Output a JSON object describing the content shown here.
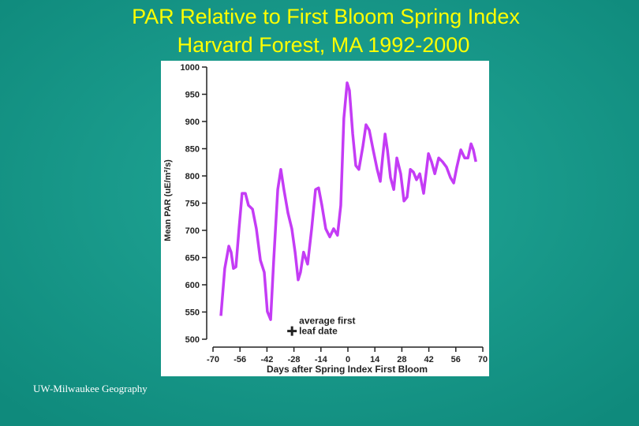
{
  "chart_data": {
    "type": "line",
    "title": "PAR Relative to First Bloom Spring Index",
    "subtitle": "Harvard Forest, MA 1992-2000",
    "x_label": "Days after Spring Index First Bloom",
    "y_label": "Mean PAR (uE/m²/s)",
    "source": "UW-Milwaukee Geography",
    "annotation": {
      "lines": [
        "average first",
        "leaf date"
      ],
      "x": -29,
      "y": 515
    },
    "xlim": [
      -70,
      70
    ],
    "xticks": [
      -70,
      -56,
      -42,
      -28,
      -14,
      0,
      14,
      28,
      42,
      56,
      70
    ],
    "ylim": [
      500,
      1000
    ],
    "yticks": [
      500,
      550,
      600,
      650,
      700,
      750,
      800,
      850,
      900,
      950,
      1000
    ],
    "series": [
      {
        "color": "#c43cf5",
        "x": [
          -65.9,
          -63.9,
          -61.8,
          -60.6,
          -59.4,
          -58.1,
          -56.5,
          -54.9,
          -53.2,
          -51.6,
          -49.5,
          -47.5,
          -45.4,
          -43.4,
          -41.8,
          -40.1,
          -38.5,
          -36.4,
          -34.8,
          -33.2,
          -31.1,
          -29.1,
          -27.4,
          -25.8,
          -24.6,
          -23.0,
          -20.9,
          -18.8,
          -16.8,
          -15.2,
          -13.5,
          -11.5,
          -9.4,
          -7.4,
          -5.4,
          -3.7,
          -2.1,
          -0.4,
          0.8,
          2.5,
          4.1,
          5.7,
          7.8,
          9.4,
          11.1,
          13.1,
          15.2,
          16.8,
          18.0,
          19.3,
          20.5,
          22.1,
          23.8,
          25.4,
          27.4,
          29.1,
          30.7,
          32.4,
          34.0,
          35.6,
          37.3,
          39.3,
          41.8,
          43.4,
          45.1,
          47.1,
          49.1,
          51.2,
          53.2,
          54.9,
          56.5,
          58.6,
          60.6,
          62.3,
          63.9,
          65.1,
          66.4
        ],
        "values": [
          543,
          630,
          671,
          660,
          630,
          633,
          703,
          768,
          768,
          746,
          739,
          703,
          645,
          623,
          551,
          536,
          645,
          775,
          812,
          775,
          732,
          703,
          660,
          609,
          623,
          660,
          638,
          703,
          775,
          778,
          746,
          703,
          688,
          703,
          691,
          746,
          906,
          971,
          957,
          877,
          819,
          812,
          855,
          894,
          884,
          848,
          812,
          790,
          833,
          877,
          848,
          797,
          775,
          833,
          804,
          754,
          761,
          812,
          807,
          793,
          804,
          768,
          841,
          826,
          804,
          833,
          826,
          816,
          797,
          787,
          816,
          848,
          833,
          833,
          859,
          848,
          826
        ]
      }
    ]
  }
}
